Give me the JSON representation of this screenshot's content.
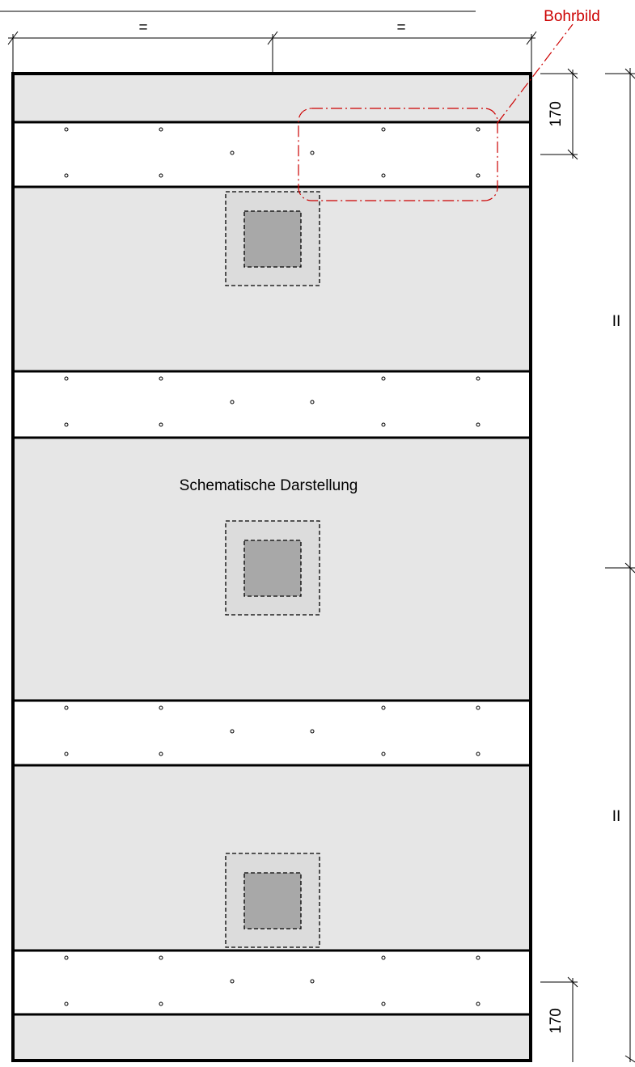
{
  "drawing": {
    "top_left_dimension_label": "=",
    "top_right_dimension_label": "=",
    "callout_label": "Bohrbild",
    "top_band_dimension": "170",
    "bottom_band_dimension": "170",
    "right_upper_dimension_label": "II",
    "right_lower_dimension_label": "II",
    "schematic_note": "Schematische Darstellung"
  },
  "colors": {
    "panel_fill": "#e6e6e6",
    "strip_fill": "#ffffff",
    "core_fill": "#a8a8a8",
    "line": "#000000",
    "callout": "#cc0000"
  }
}
